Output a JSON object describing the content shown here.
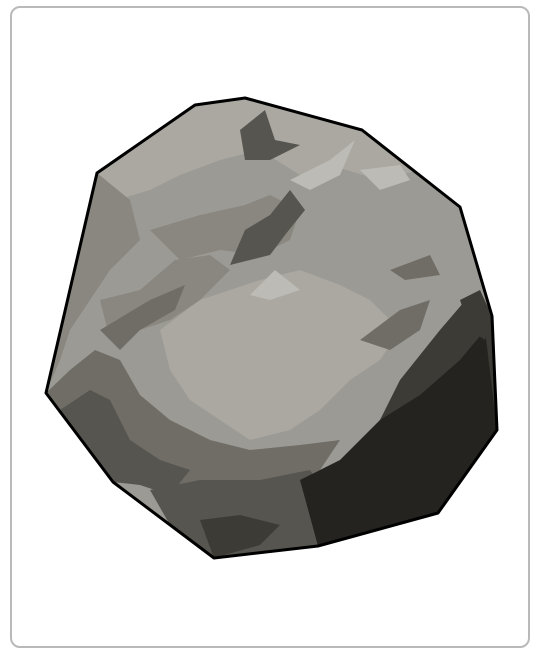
{
  "image": {
    "subject": "rock-illustration",
    "colors": {
      "frame_border": "#b9b9b9",
      "background": "#ffffff",
      "outline": "#000000",
      "highlight": "#bdbbb5",
      "light": "#aaa8a1",
      "mid_light": "#9c9a94",
      "mid": "#8a8780",
      "mid_dark": "#6f6d66",
      "dark": "#57554f",
      "darker": "#3c3b36",
      "darkest": "#24231f"
    }
  }
}
